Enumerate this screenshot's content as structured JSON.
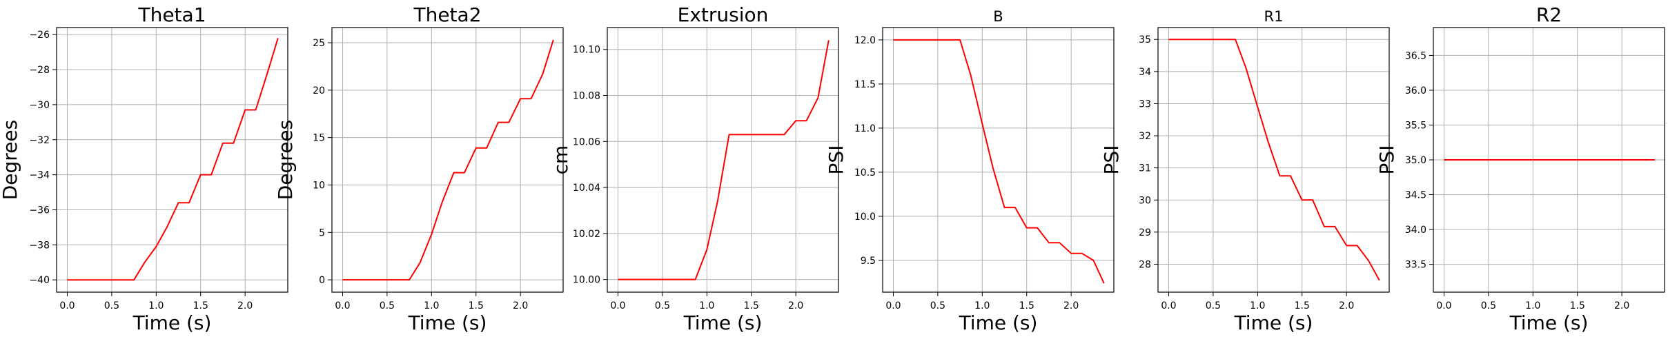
{
  "figure": {
    "background": "#ffffff",
    "line_color": "#ff0000",
    "grid_color": "#b0b0b0"
  },
  "chart_data": [
    {
      "type": "line",
      "title": "Theta1",
      "xlabel": "Time (s)",
      "ylabel": "Degrees",
      "xlim": [
        -0.12,
        2.48
      ],
      "ylim": [
        -40.7,
        -25.6
      ],
      "xticks": [
        0.0,
        0.5,
        1.0,
        1.5,
        2.0
      ],
      "xtick_labels": [
        "0.0",
        "0.5",
        "1.0",
        "1.5",
        "2.0"
      ],
      "yticks": [
        -40,
        -38,
        -36,
        -34,
        -32,
        -30,
        -28,
        -26
      ],
      "ytick_labels": [
        "−40",
        "−38",
        "−36",
        "−34",
        "−32",
        "−30",
        "−28",
        "−26"
      ],
      "grid": true,
      "series": [
        {
          "x": [
            0.0,
            0.75,
            0.87,
            1.0,
            1.12,
            1.25,
            1.37,
            1.5,
            1.62,
            1.75,
            1.87,
            2.0,
            2.12,
            2.25,
            2.37
          ],
          "y": [
            -40.0,
            -40.0,
            -39.0,
            -38.1,
            -37.0,
            -35.6,
            -35.6,
            -34.0,
            -34.0,
            -32.2,
            -32.2,
            -30.3,
            -30.3,
            -28.2,
            -26.2
          ]
        }
      ]
    },
    {
      "type": "line",
      "title": "Theta2",
      "xlabel": "Time (s)",
      "ylabel": "Degrees",
      "xlim": [
        -0.12,
        2.48
      ],
      "ylim": [
        -1.3,
        26.6
      ],
      "xticks": [
        0.0,
        0.5,
        1.0,
        1.5,
        2.0
      ],
      "xtick_labels": [
        "0.0",
        "0.5",
        "1.0",
        "1.5",
        "2.0"
      ],
      "yticks": [
        0,
        5,
        10,
        15,
        20,
        25
      ],
      "ytick_labels": [
        "0",
        "5",
        "10",
        "15",
        "20",
        "25"
      ],
      "grid": true,
      "series": [
        {
          "x": [
            0.0,
            0.75,
            0.87,
            1.0,
            1.12,
            1.25,
            1.37,
            1.5,
            1.62,
            1.75,
            1.87,
            2.0,
            2.12,
            2.25,
            2.37
          ],
          "y": [
            0.0,
            0.0,
            1.8,
            4.8,
            8.2,
            11.3,
            11.3,
            13.9,
            13.9,
            16.6,
            16.6,
            19.1,
            19.1,
            21.7,
            25.3
          ]
        }
      ]
    },
    {
      "type": "line",
      "title": "Extrusion",
      "xlabel": "Time (s)",
      "ylabel": "cm",
      "xlim": [
        -0.12,
        2.48
      ],
      "ylim": [
        9.9945,
        10.1095
      ],
      "xticks": [
        0.0,
        0.5,
        1.0,
        1.5,
        2.0
      ],
      "xtick_labels": [
        "0.0",
        "0.5",
        "1.0",
        "1.5",
        "2.0"
      ],
      "yticks": [
        10.0,
        10.02,
        10.04,
        10.06,
        10.08,
        10.1
      ],
      "ytick_labels": [
        "10.00",
        "10.02",
        "10.04",
        "10.06",
        "10.08",
        "10.10"
      ],
      "grid": true,
      "series": [
        {
          "x": [
            0.0,
            0.87,
            1.0,
            1.12,
            1.25,
            1.5,
            1.87,
            2.0,
            2.12,
            2.25,
            2.37
          ],
          "y": [
            10.0,
            10.0,
            10.013,
            10.034,
            10.063,
            10.063,
            10.063,
            10.069,
            10.069,
            10.079,
            10.104
          ]
        }
      ]
    },
    {
      "type": "line",
      "title": "B",
      "xlabel": "Time (s)",
      "ylabel": "PSI",
      "xlim": [
        -0.12,
        2.48
      ],
      "ylim": [
        9.14,
        12.14
      ],
      "xticks": [
        0.0,
        0.5,
        1.0,
        1.5,
        2.0
      ],
      "xtick_labels": [
        "0.0",
        "0.5",
        "1.0",
        "1.5",
        "2.0"
      ],
      "yticks": [
        9.5,
        10.0,
        10.5,
        11.0,
        11.5,
        12.0
      ],
      "ytick_labels": [
        "9.5",
        "10.0",
        "10.5",
        "11.0",
        "11.5",
        "12.0"
      ],
      "grid": true,
      "series": [
        {
          "x": [
            0.0,
            0.75,
            0.87,
            1.0,
            1.12,
            1.25,
            1.37,
            1.5,
            1.62,
            1.75,
            1.87,
            2.0,
            2.12,
            2.25,
            2.37
          ],
          "y": [
            12.0,
            12.0,
            11.6,
            11.05,
            10.55,
            10.1,
            10.1,
            9.87,
            9.87,
            9.7,
            9.7,
            9.58,
            9.58,
            9.5,
            9.24
          ]
        }
      ]
    },
    {
      "type": "line",
      "title": "R1",
      "xlabel": "Time (s)",
      "ylabel": "PSI",
      "xlim": [
        -0.12,
        2.48
      ],
      "ylim": [
        27.13,
        35.37
      ],
      "xticks": [
        0.0,
        0.5,
        1.0,
        1.5,
        2.0
      ],
      "xtick_labels": [
        "0.0",
        "0.5",
        "1.0",
        "1.5",
        "2.0"
      ],
      "yticks": [
        28,
        29,
        30,
        31,
        32,
        33,
        34,
        35
      ],
      "ytick_labels": [
        "28",
        "29",
        "30",
        "31",
        "32",
        "33",
        "34",
        "35"
      ],
      "grid": true,
      "series": [
        {
          "x": [
            0.0,
            0.75,
            0.87,
            1.0,
            1.12,
            1.25,
            1.37,
            1.5,
            1.62,
            1.75,
            1.87,
            2.0,
            2.12,
            2.25,
            2.37
          ],
          "y": [
            35.0,
            35.0,
            34.1,
            32.9,
            31.8,
            30.75,
            30.75,
            30.0,
            30.0,
            29.17,
            29.17,
            28.58,
            28.58,
            28.1,
            27.5
          ]
        }
      ]
    },
    {
      "type": "line",
      "title": "R2",
      "xlabel": "Time (s)",
      "ylabel": "PSI",
      "xlim": [
        -0.12,
        2.48
      ],
      "ylim": [
        33.1,
        36.9
      ],
      "xticks": [
        0.0,
        0.5,
        1.0,
        1.5,
        2.0
      ],
      "xtick_labels": [
        "0.0",
        "0.5",
        "1.0",
        "1.5",
        "2.0"
      ],
      "yticks": [
        33.5,
        34.0,
        34.5,
        35.0,
        35.5,
        36.0,
        36.5
      ],
      "ytick_labels": [
        "33.5",
        "34.0",
        "34.5",
        "35.0",
        "35.5",
        "36.0",
        "36.5"
      ],
      "grid": true,
      "series": [
        {
          "x": [
            0.0,
            2.37
          ],
          "y": [
            35.0,
            35.0
          ]
        }
      ]
    }
  ]
}
